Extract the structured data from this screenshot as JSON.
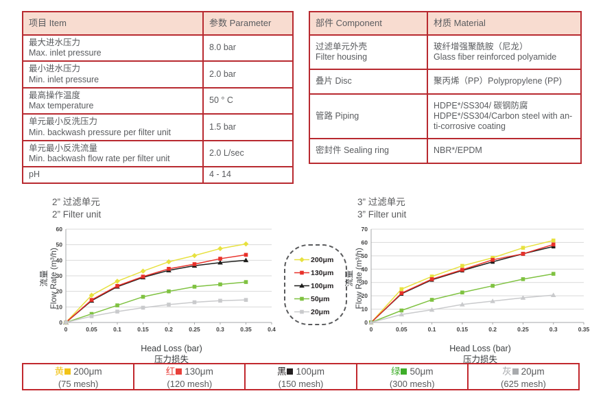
{
  "specs_table": {
    "headers": [
      "项目 Item",
      "参数 Parameter"
    ],
    "rows": [
      {
        "item": "最大进水压力\nMax. inlet pressure",
        "value": "8.0 bar"
      },
      {
        "item": "最小进水压力\nMin. inlet pressure",
        "value": "2.0 bar"
      },
      {
        "item": "最高操作温度\nMax temperature",
        "value": "50 ° C"
      },
      {
        "item": "单元最小反洗压力\nMin. backwash pressure per filter unit",
        "value": "1.5 bar"
      },
      {
        "item": "单元最小反洗流量\nMin. backwash flow rate per filter unit",
        "value": "2.0 L/sec"
      },
      {
        "item": "pH",
        "value": "4 - 14"
      }
    ]
  },
  "materials_table": {
    "headers": [
      "部件 Component",
      "材质 Material"
    ],
    "rows": [
      {
        "component": "过滤单元外壳\nFilter housing",
        "material": "玻纤增强聚酰胺（尼龙）\nGlass fiber reinforced polyamide"
      },
      {
        "component": "叠片 Disc",
        "material": "聚丙烯（PP）Polypropylene (PP)"
      },
      {
        "component": "管路 Piping",
        "material": "HDPE*/SS304/ 碳钢防腐\nHDPE*/SS304/Carbon steel with an-\nti-corrosive coating"
      },
      {
        "component": "密封件 Sealing ring",
        "material": "NBR*/EPDM"
      }
    ]
  },
  "chart_data": [
    {
      "type": "line",
      "title_zh": "2” 过滤单元",
      "title_en": "2” Filter unit",
      "xlabel": "Head Loss (bar)",
      "xlabel_zh": "压力损失",
      "ylabel_zh": "流量",
      "ylabel": "Flow Rate (m³/h)",
      "xlim": [
        0,
        0.4
      ],
      "ylim": [
        0,
        60
      ],
      "xticks": [
        0,
        0.05,
        0.1,
        0.15,
        0.2,
        0.25,
        0.3,
        0.35,
        0.4
      ],
      "yticks": [
        0,
        10,
        20,
        30,
        40,
        50,
        60
      ],
      "x": [
        0,
        0.05,
        0.1,
        0.15,
        0.2,
        0.25,
        0.3,
        0.35
      ],
      "grid": true,
      "legend_position": "right-bubble",
      "draw_order": [
        0,
        2,
        1,
        3,
        4
      ],
      "series": [
        {
          "name": "200μm",
          "color": "#e7e13f",
          "marker": "diamond",
          "values": [
            0,
            17.5,
            26.5,
            33,
            39,
            43,
            47.5,
            50.5
          ]
        },
        {
          "name": "130μm",
          "color": "#e8312a",
          "marker": "square",
          "values": [
            0,
            14.5,
            23.5,
            29.5,
            34.5,
            37.5,
            41,
            43.5
          ]
        },
        {
          "name": "100μm",
          "color": "#1d1d1b",
          "marker": "triangle",
          "values": [
            0,
            14,
            23,
            29,
            33.5,
            36.5,
            38.5,
            40
          ]
        },
        {
          "name": "50μm",
          "color": "#7fc241",
          "marker": "square",
          "values": [
            0,
            5.5,
            11,
            16.5,
            20,
            23,
            24.5,
            26
          ]
        },
        {
          "name": "20μm",
          "color": "#c9cacc",
          "marker": "square",
          "values": [
            0,
            4,
            7,
            9.5,
            11.5,
            13,
            14,
            14.5
          ]
        }
      ]
    },
    {
      "type": "line",
      "title_zh": "3” 过滤单元",
      "title_en": "3” Filter unit",
      "xlabel": "Head Loss (bar)",
      "xlabel_zh": "压力损失",
      "ylabel_zh": "流量",
      "ylabel": "Flow Rate (m³/h)",
      "xlim": [
        0,
        0.35
      ],
      "ylim": [
        0,
        70
      ],
      "xticks": [
        0,
        0.05,
        0.1,
        0.15,
        0.2,
        0.25,
        0.3,
        0.35
      ],
      "yticks": [
        0,
        10,
        20,
        30,
        40,
        50,
        60,
        70
      ],
      "x": [
        0,
        0.05,
        0.1,
        0.15,
        0.2,
        0.25,
        0.3
      ],
      "grid": true,
      "legend_position": "none",
      "draw_order": [
        0,
        2,
        1,
        3,
        4
      ],
      "series": [
        {
          "name": "200μm",
          "color": "#e7e13f",
          "marker": "square",
          "values": [
            0,
            25,
            34.5,
            42.5,
            48.5,
            56,
            61.5
          ]
        },
        {
          "name": "130μm",
          "color": "#e8312a",
          "marker": "square",
          "values": [
            0,
            22,
            32.5,
            39.5,
            47,
            51.5,
            58.5
          ]
        },
        {
          "name": "100μm",
          "color": "#1d1d1b",
          "marker": "square",
          "values": [
            0,
            21.5,
            32,
            39,
            45.5,
            51.5,
            57
          ]
        },
        {
          "name": "50μm",
          "color": "#7fc241",
          "marker": "square",
          "values": [
            0,
            9,
            17,
            22.5,
            27.5,
            32.5,
            36.5
          ]
        },
        {
          "name": "20μm",
          "color": "#c9cacc",
          "marker": "triangle",
          "values": [
            0,
            6,
            9.5,
            13.5,
            16,
            18.5,
            20.5
          ]
        }
      ]
    }
  ],
  "chart_legend": {
    "entries": [
      {
        "label": "200μm",
        "color": "#e7e13f",
        "marker": "diamond"
      },
      {
        "label": "130μm",
        "color": "#e8312a",
        "marker": "square"
      },
      {
        "label": "100μm",
        "color": "#1d1d1b",
        "marker": "triangle"
      },
      {
        "label": "50μm",
        "color": "#7fc241",
        "marker": "square"
      },
      {
        "label": "20μm",
        "color": "#c9cacc",
        "marker": "square"
      }
    ]
  },
  "bottom_legend": {
    "cells": [
      {
        "cn": "黄",
        "color": "#f2c317",
        "size": "200μm",
        "mesh": "(75 mesh)"
      },
      {
        "cn": "红",
        "color": "#e8403a",
        "size": "130μm",
        "mesh": "(120 mesh)"
      },
      {
        "cn": "黑",
        "color": "#231f20",
        "size": "100μm",
        "mesh": "(150 mesh)"
      },
      {
        "cn": "绿",
        "color": "#3fae2a",
        "size": "50μm",
        "mesh": "(300 mesh)"
      },
      {
        "cn": "灰",
        "color": "#a8aaad",
        "size": "20μm",
        "mesh": "(625 mesh)"
      }
    ]
  },
  "colors": {
    "table_border": "#b8292f",
    "header_bg": "#f8dcd0",
    "grid": "#d9d9d9",
    "axis": "#a6a7a9"
  }
}
